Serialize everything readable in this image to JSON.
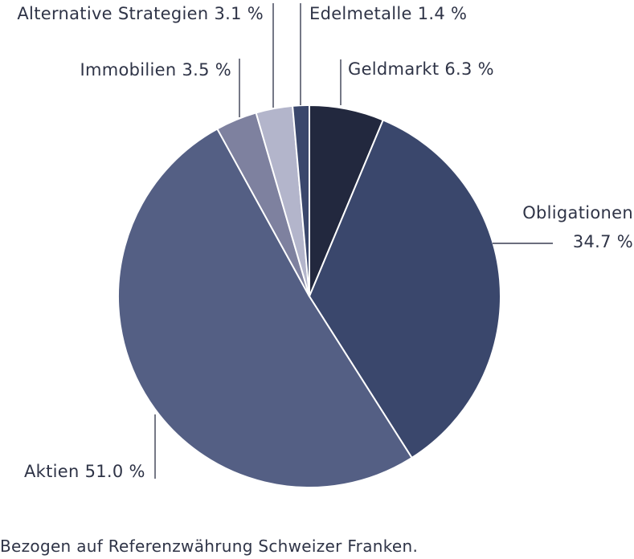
{
  "chart_data": {
    "type": "pie",
    "unit": "%",
    "slices": [
      {
        "name": "Geldmarkt",
        "value": 6.3,
        "color": "#22283e",
        "label_lines": [
          "Geldmarkt 6.3 %"
        ]
      },
      {
        "name": "Obligationen",
        "value": 34.7,
        "color": "#3a476c",
        "label_lines": [
          "Obligationen",
          "34.7 %"
        ]
      },
      {
        "name": "Aktien",
        "value": 51.0,
        "color": "#545f84",
        "label_lines": [
          "Aktien 51.0 %"
        ]
      },
      {
        "name": "Immobilien",
        "value": 3.5,
        "color": "#7e819f",
        "label_lines": [
          "Immobilien 3.5 %"
        ]
      },
      {
        "name": "Alternative Strategien",
        "value": 3.1,
        "color": "#b3b5cb",
        "label_lines": [
          "Alternative Strategien 3.1 %"
        ]
      },
      {
        "name": "Edelmetalle",
        "value": 1.4,
        "color": "#3a476c",
        "label_lines": [
          "Edelmetalle 1.4 %"
        ]
      }
    ]
  },
  "footnote": "Bezogen auf Referenzwährung Schweizer Franken."
}
